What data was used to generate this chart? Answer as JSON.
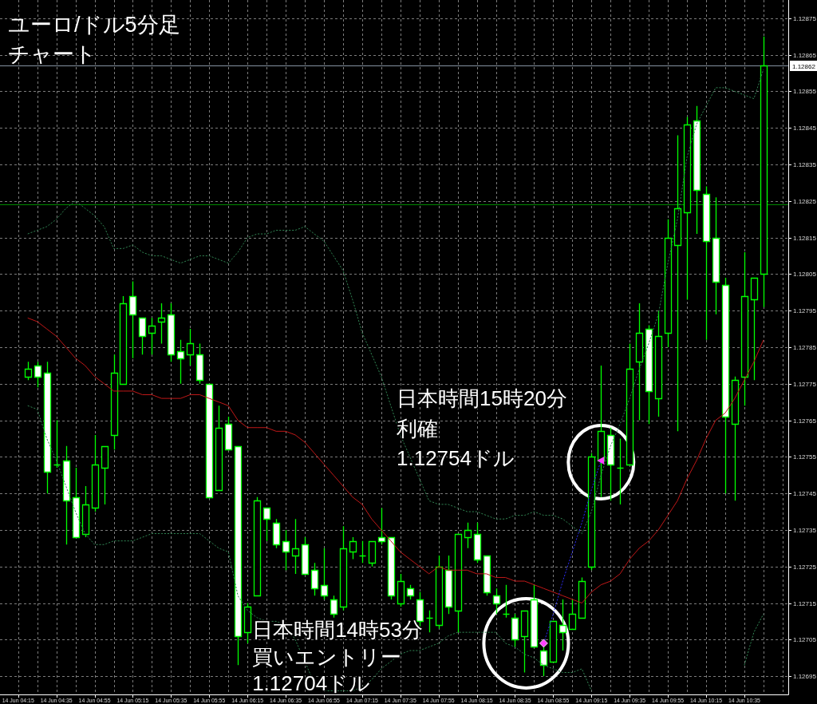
{
  "chart_data": {
    "type": "candlestick",
    "title": "ユーロ/ドル5分足チャート",
    "color": "#00ff00",
    "categories": [
      "14 Jun 04:15",
      null,
      null,
      null,
      "14 Jun 04:35",
      null,
      null,
      null,
      "14 Jun 04:55",
      null,
      null,
      null,
      "14 Jun 05:15",
      null,
      null,
      null,
      "14 Jun 05:35",
      null,
      null,
      null,
      "14 Jun 05:55",
      null,
      null,
      null,
      "14 Jun 06:15",
      null,
      null,
      null,
      "14 Jun 06:35",
      null,
      null,
      null,
      "14 Jun 06:55",
      null,
      null,
      null,
      "14 Jun 07:15",
      null,
      null,
      null,
      "14 Jun 07:35",
      null,
      null,
      null,
      "14 Jun 07:55",
      null,
      null,
      null,
      "14 Jun 08:15",
      null,
      null,
      null,
      "14 Jun 08:35",
      null,
      null,
      null,
      "14 Jun 08:55",
      null,
      null,
      null,
      "14 Jun 09:15",
      null,
      null,
      null,
      "14 Jun 09:35",
      null,
      null,
      null,
      "14 Jun 09:55",
      null,
      null,
      null,
      "14 Jun 10:15",
      null,
      null,
      null,
      "14 Jun 10:35",
      null,
      null
    ],
    "ohlc": [
      null,
      [
        1.12777,
        1.12781,
        1.12776,
        1.12779
      ],
      [
        1.1278,
        1.12781,
        1.12774,
        1.12777
      ],
      [
        1.12778,
        1.12781,
        1.12745,
        1.12751
      ],
      [
        1.12753,
        1.12765,
        1.12752,
        1.12753
      ],
      [
        1.12754,
        1.12758,
        1.12731,
        1.12743
      ],
      [
        1.12744,
        1.12752,
        1.12733,
        1.12733
      ],
      [
        1.12734,
        1.12747,
        1.12733,
        1.12742
      ],
      [
        1.12741,
        1.12761,
        1.1274,
        1.12753
      ],
      [
        1.12752,
        1.12758,
        1.12742,
        1.12758
      ],
      [
        1.12761,
        1.12783,
        1.12757,
        1.12778
      ],
      [
        1.12775,
        1.12799,
        1.12775,
        1.12797
      ],
      [
        1.12799,
        1.12803,
        1.12782,
        1.12794
      ],
      [
        1.12793,
        1.12793,
        1.12783,
        1.12788
      ],
      [
        1.12789,
        1.12793,
        1.12783,
        1.12791
      ],
      [
        1.12792,
        1.12797,
        1.12786,
        1.12793
      ],
      [
        1.12794,
        1.12797,
        1.12781,
        1.12783
      ],
      [
        1.12784,
        1.12787,
        1.12775,
        1.12782
      ],
      [
        1.12783,
        1.1279,
        1.1278,
        1.12786
      ],
      [
        1.12783,
        1.12786,
        1.12775,
        1.12776
      ],
      [
        1.12775,
        1.12775,
        1.12744,
        1.12744
      ],
      [
        1.12746,
        1.12769,
        1.12746,
        1.12763
      ],
      [
        1.12764,
        1.12766,
        1.12757,
        1.12757
      ],
      [
        1.12758,
        1.12758,
        1.12698,
        1.12706
      ],
      [
        1.12707,
        1.12715,
        1.12704,
        1.12714
      ],
      [
        1.12717,
        1.12744,
        1.12717,
        1.12743
      ],
      [
        1.12741,
        1.12741,
        1.12732,
        1.12738
      ],
      [
        1.12737,
        1.12738,
        1.1273,
        1.12731
      ],
      [
        1.12732,
        1.12735,
        1.12724,
        1.12729
      ],
      [
        1.12728,
        1.12738,
        1.12723,
        1.1273
      ],
      [
        1.12731,
        1.12733,
        1.12723,
        1.12723
      ],
      [
        1.12724,
        1.12726,
        1.12717,
        1.12719
      ],
      [
        1.1272,
        1.1273,
        1.12716,
        1.12717
      ],
      [
        1.12716,
        1.12717,
        1.12711,
        1.12712
      ],
      [
        1.12714,
        1.12736,
        1.12713,
        1.1273
      ],
      [
        1.12729,
        1.12733,
        1.12727,
        1.12732
      ],
      [
        1.12728,
        1.12732,
        1.12726,
        1.12728
      ],
      [
        1.12726,
        1.12732,
        1.12725,
        1.12732
      ],
      [
        1.12733,
        1.12741,
        1.12731,
        1.12732
      ],
      [
        1.12733,
        1.12733,
        1.12716,
        1.12717
      ],
      [
        1.12715,
        1.12723,
        1.12714,
        1.12721
      ],
      [
        1.12719,
        1.1272,
        1.12716,
        1.12717
      ],
      [
        1.12716,
        1.12718,
        1.12708,
        1.1271
      ],
      [
        1.12711,
        1.12713,
        1.12707,
        1.12711
      ],
      [
        1.12709,
        1.12728,
        1.12708,
        1.12725
      ],
      [
        1.12724,
        1.12728,
        1.12712,
        1.12714
      ],
      [
        1.12713,
        1.12734,
        1.12707,
        1.12734
      ],
      [
        1.12733,
        1.12737,
        1.1273,
        1.12735
      ],
      [
        1.12734,
        1.12737,
        1.12726,
        1.12727
      ],
      [
        1.12728,
        1.12728,
        1.12717,
        1.12718
      ],
      [
        1.12717,
        1.12719,
        1.12712,
        1.12715
      ],
      [
        1.12712,
        1.1272,
        1.12711,
        1.12712
      ],
      [
        1.12711,
        1.12712,
        1.12703,
        1.12705
      ],
      [
        1.12706,
        1.12713,
        1.12696,
        1.12713
      ],
      [
        1.12716,
        1.1272,
        1.12703,
        1.12703
      ],
      [
        1.12702,
        1.12703,
        1.12695,
        1.12698
      ],
      [
        1.12699,
        1.1271,
        1.12699,
        1.1271
      ],
      [
        1.12709,
        1.12716,
        1.12702,
        1.12707
      ],
      [
        1.12708,
        1.12716,
        1.12708,
        1.12712
      ],
      [
        1.12711,
        1.12722,
        1.12711,
        1.12721
      ],
      [
        1.12725,
        1.12756,
        1.12724,
        1.12755
      ],
      [
        1.12754,
        1.1278,
        1.12744,
        1.12762
      ],
      [
        1.12761,
        1.12763,
        1.12743,
        1.12753
      ],
      [
        1.12752,
        1.1276,
        1.12742,
        1.12752
      ],
      [
        1.12753,
        1.12786,
        1.12753,
        1.12779
      ],
      [
        1.12781,
        1.12797,
        1.12765,
        1.12789
      ],
      [
        1.1279,
        1.12791,
        1.12764,
        1.12773
      ],
      [
        1.12771,
        1.12795,
        1.12766,
        1.12788
      ],
      [
        1.12789,
        1.1282,
        1.12785,
        1.12815
      ],
      [
        1.12813,
        1.12843,
        1.12762,
        1.12823
      ],
      [
        1.12822,
        1.12848,
        1.12798,
        1.12846
      ],
      [
        1.12847,
        1.12851,
        1.12816,
        1.12828
      ],
      [
        1.12827,
        1.12829,
        1.12787,
        1.12814
      ],
      [
        1.12815,
        1.12826,
        1.12794,
        1.12803
      ],
      [
        1.12802,
        1.12804,
        1.12745,
        1.12766
      ],
      [
        1.12764,
        1.12777,
        1.12743,
        1.12776
      ],
      [
        1.12777,
        1.12811,
        1.12769,
        1.12799
      ],
      [
        1.12798,
        1.12804,
        1.12776,
        1.12804
      ],
      [
        1.12805,
        1.1287,
        1.12796,
        1.12862
      ]
    ],
    "series": [
      {
        "type": "line",
        "color": "#2f8050",
        "line_style": "dotted",
        "values": [
          null,
          1.12816,
          1.12817,
          1.12818,
          1.1282,
          1.12823,
          1.12825,
          1.12823,
          1.12821,
          1.12818,
          1.12812,
          1.12812,
          1.12813,
          1.12811,
          1.1281,
          1.1281,
          1.12809,
          1.12808,
          1.12809,
          1.1281,
          1.1281,
          1.12809,
          1.12808,
          1.12811,
          1.12815,
          1.12816,
          1.12816,
          1.12817,
          1.12817,
          1.12817,
          1.12818,
          1.12816,
          1.12814,
          1.1281,
          1.12806,
          1.12798,
          1.12789,
          1.12783,
          1.12777,
          1.12769,
          1.12761,
          1.12755,
          1.12749,
          1.12743,
          1.12742,
          1.12742,
          1.12741,
          1.1274,
          1.1274,
          1.12739,
          1.12738,
          1.12738,
          1.12739,
          1.12739,
          1.1274,
          1.12739,
          1.12739,
          1.12738,
          1.12736,
          1.12734,
          1.1274,
          1.1275,
          1.12758,
          1.12764,
          1.12771,
          1.12779,
          1.12786,
          1.12794,
          1.12808,
          1.1282,
          1.12837,
          1.12846,
          1.12851,
          1.12856,
          1.12856,
          1.12855,
          1.12854,
          1.12853,
          1.12861
        ]
      },
      {
        "type": "line",
        "color": "#2f8050",
        "line_style": "dotted",
        "values": [
          null,
          1.12769,
          1.12768,
          1.1276,
          1.12754,
          1.12747,
          1.1274,
          1.12734,
          1.12731,
          1.12731,
          1.12732,
          1.12732,
          1.12732,
          1.12733,
          1.12734,
          1.12734,
          1.12734,
          1.12734,
          1.12734,
          1.12734,
          1.12732,
          1.1273,
          1.12729,
          1.12717,
          1.12713,
          1.12711,
          1.1271,
          1.1271,
          1.12709,
          1.12705,
          1.12699,
          1.12693,
          1.12691,
          1.12691,
          1.12691,
          1.12691,
          1.12692,
          1.12694,
          1.12697,
          1.12699,
          1.12701,
          1.12702,
          1.12702,
          1.12703,
          1.12704,
          1.12706,
          1.12707,
          1.12707,
          1.12707,
          1.12707,
          1.12707,
          1.12704,
          1.12703,
          1.12701,
          1.127,
          1.12698,
          1.12697,
          1.12696,
          1.12696,
          1.12697,
          1.12691,
          null,
          null,
          null,
          null,
          null,
          null,
          null,
          null,
          null,
          null,
          null,
          null,
          null,
          null,
          null,
          1.12698,
          1.12707,
          1.12712
        ]
      },
      {
        "type": "line",
        "color": "#c01818",
        "line_style": "solid",
        "values": [
          null,
          1.12793,
          1.12792,
          1.1279,
          1.12788,
          1.12785,
          1.12782,
          1.1278,
          1.12777,
          1.12775,
          1.12773,
          1.12773,
          1.12773,
          1.12772,
          1.12772,
          1.12771,
          1.12771,
          1.12771,
          1.12772,
          1.12772,
          1.12771,
          1.1277,
          1.12769,
          1.12765,
          1.12763,
          1.12763,
          1.12763,
          1.12762,
          1.12762,
          1.12761,
          1.12759,
          1.12756,
          1.12753,
          1.1275,
          1.12747,
          1.12744,
          1.12742,
          1.12738,
          1.12735,
          1.12732,
          1.12729,
          1.12727,
          1.12725,
          1.12723,
          1.12725,
          1.12724,
          1.12724,
          1.12724,
          1.12723,
          1.12723,
          1.12722,
          1.12722,
          1.12721,
          1.12721,
          1.1272,
          1.12719,
          1.12718,
          1.12717,
          1.12716,
          1.12715,
          1.12718,
          1.1272,
          1.12721,
          1.12723,
          1.12727,
          1.1273,
          1.12732,
          1.12735,
          1.12739,
          1.12743,
          1.12749,
          1.12754,
          1.1276,
          1.12765,
          1.12767,
          1.12771,
          1.12776,
          1.12781,
          1.12787
        ]
      },
      {
        "type": "line",
        "color": "#2a2aee",
        "line_style": "dotted",
        "values": [
          null,
          null,
          null,
          null,
          null,
          null,
          null,
          null,
          null,
          null,
          null,
          null,
          null,
          null,
          null,
          null,
          null,
          null,
          null,
          null,
          null,
          null,
          null,
          null,
          null,
          null,
          null,
          null,
          null,
          null,
          null,
          null,
          null,
          null,
          null,
          null,
          null,
          null,
          null,
          null,
          null,
          null,
          null,
          null,
          null,
          null,
          null,
          null,
          null,
          null,
          null,
          null,
          null,
          null,
          null,
          1.12704,
          1.12712,
          1.12721,
          1.12729,
          1.12737,
          1.12746,
          1.12754,
          null,
          null,
          null,
          null,
          null,
          null,
          null,
          null,
          null,
          null,
          null,
          null,
          null,
          null,
          null,
          null,
          null
        ]
      },
      {
        "type": "scatter",
        "color": "#ff40ff",
        "marker": "diamond",
        "values": [
          null,
          null,
          null,
          null,
          null,
          null,
          null,
          null,
          null,
          null,
          null,
          null,
          null,
          null,
          null,
          null,
          null,
          null,
          null,
          null,
          null,
          null,
          null,
          null,
          null,
          null,
          null,
          null,
          null,
          null,
          null,
          null,
          null,
          null,
          null,
          null,
          null,
          null,
          null,
          null,
          null,
          null,
          null,
          null,
          null,
          null,
          null,
          null,
          null,
          null,
          null,
          null,
          null,
          null,
          null,
          1.12704,
          null,
          null,
          null,
          null,
          null,
          null,
          null,
          null,
          null,
          null,
          null,
          null,
          null,
          null,
          null,
          null,
          null,
          null,
          null,
          null,
          null,
          null,
          null
        ]
      },
      {
        "type": "scatter",
        "color": "#ff40ff",
        "marker": "triangle",
        "values": [
          null,
          null,
          null,
          null,
          null,
          null,
          null,
          null,
          null,
          null,
          null,
          null,
          null,
          null,
          null,
          null,
          null,
          null,
          null,
          null,
          null,
          null,
          null,
          null,
          null,
          null,
          null,
          null,
          null,
          null,
          null,
          null,
          null,
          null,
          null,
          null,
          null,
          null,
          null,
          null,
          null,
          null,
          null,
          null,
          null,
          null,
          null,
          null,
          null,
          null,
          null,
          null,
          null,
          null,
          null,
          null,
          null,
          null,
          null,
          null,
          null,
          1.12754,
          null,
          null,
          null,
          null,
          null,
          null,
          null,
          null,
          null,
          null,
          null,
          null,
          null,
          null,
          null,
          null,
          null
        ]
      }
    ],
    "ylim": [
      1.1269,
      1.1288
    ],
    "yticks": [
      1.12695,
      1.12705,
      1.12715,
      1.12725,
      1.12735,
      1.12745,
      1.12755,
      1.12765,
      1.12775,
      1.12785,
      1.12795,
      1.12805,
      1.12815,
      1.12825,
      1.12835,
      1.12845,
      1.12855,
      1.12865,
      1.12875
    ],
    "grid": true,
    "ref_lines": [
      {
        "axis": "y",
        "value": 1.12862,
        "label": "1.12862",
        "color": "#8492a0"
      },
      {
        "axis": "y",
        "value": 1.12824,
        "color": "#008a00"
      }
    ],
    "annotations": [
      "日本時間14時53分",
      "買いエントリー",
      "1.12704ドル",
      "日本時間15時20分",
      "利確",
      "1.12754ドル"
    ]
  }
}
